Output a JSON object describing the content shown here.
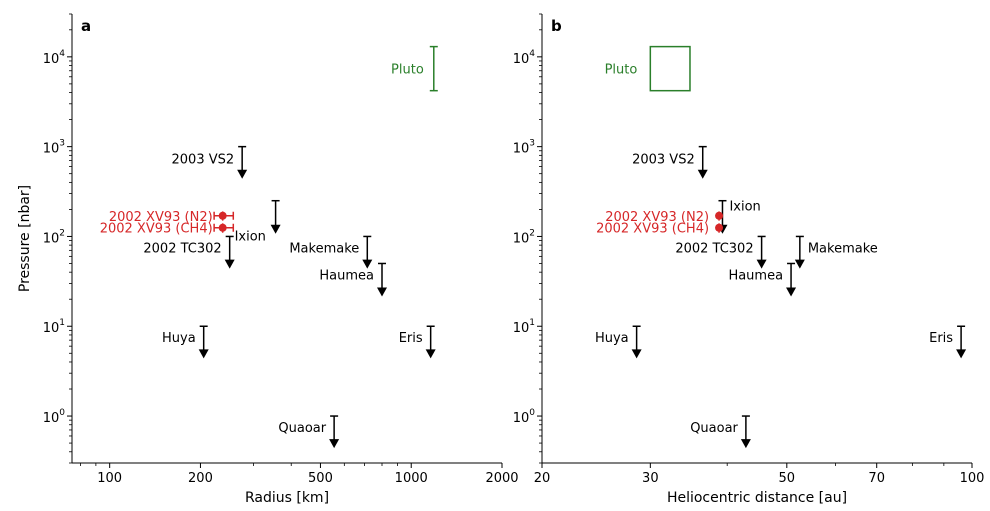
{
  "chart_data": [
    {
      "panel_label": "a",
      "type": "scatter",
      "xlabel": "Radius [km]",
      "ylabel": "Pressure [nbar]",
      "x_scale": "log",
      "y_scale": "log",
      "xlim": [
        75,
        2000
      ],
      "ylim": [
        0.3,
        30000
      ],
      "x_ticks": [
        {
          "v": 100,
          "label": "100"
        },
        {
          "v": 200,
          "label": "200"
        },
        {
          "v": 500,
          "label": "500"
        },
        {
          "v": 1000,
          "label": "1000"
        },
        {
          "v": 2000,
          "label": "2000"
        }
      ],
      "y_ticks": [
        {
          "v": 1,
          "base": "10",
          "exp": "0"
        },
        {
          "v": 10,
          "base": "10",
          "exp": "1"
        },
        {
          "v": 100,
          "base": "10",
          "exp": "2"
        },
        {
          "v": 1000,
          "base": "10",
          "exp": "3"
        },
        {
          "v": 10000,
          "base": "10",
          "exp": "4"
        }
      ],
      "upper_limits": [
        {
          "name": "2003 VS2",
          "x": 275,
          "top": 1000,
          "bottom": 450
        },
        {
          "name": "Ixion",
          "x": 355,
          "top": 250,
          "bottom": 110
        },
        {
          "name": "2002 TC302",
          "x": 250,
          "top": 100,
          "bottom": 45
        },
        {
          "name": "Makemake",
          "x": 715,
          "top": 100,
          "bottom": 45
        },
        {
          "name": "Haumea",
          "x": 800,
          "top": 50,
          "bottom": 22
        },
        {
          "name": "Huya",
          "x": 205,
          "top": 10,
          "bottom": 4.5
        },
        {
          "name": "Eris",
          "x": 1160,
          "top": 10,
          "bottom": 4.5
        },
        {
          "name": "Quaoar",
          "x": 555,
          "top": 1.0,
          "bottom": 0.45
        }
      ],
      "detections": [
        {
          "name": "2002 XV93 (N2)",
          "x": 237,
          "x_err": [
            222,
            257
          ],
          "y": 170,
          "y_err": [
            150,
            190
          ]
        },
        {
          "name": "2002 XV93 (CH4)",
          "x": 237,
          "x_err": [
            222,
            257
          ],
          "y": 125,
          "y_err": [
            110,
            140
          ]
        }
      ],
      "reference": {
        "name": "Pluto",
        "x": 1188,
        "y_range": [
          4200,
          13000
        ]
      }
    },
    {
      "panel_label": "b",
      "type": "scatter",
      "xlabel": "Heliocentric distance [au]",
      "ylabel": "",
      "x_scale": "log",
      "y_scale": "log",
      "xlim": [
        20,
        100
      ],
      "ylim": [
        0.3,
        30000
      ],
      "x_ticks": [
        {
          "v": 20,
          "label": "20"
        },
        {
          "v": 30,
          "label": "30"
        },
        {
          "v": 50,
          "label": "50"
        },
        {
          "v": 70,
          "label": "70"
        },
        {
          "v": 100,
          "label": "100"
        }
      ],
      "y_ticks": [
        {
          "v": 1,
          "base": "10",
          "exp": "0"
        },
        {
          "v": 10,
          "base": "10",
          "exp": "1"
        },
        {
          "v": 100,
          "base": "10",
          "exp": "2"
        },
        {
          "v": 1000,
          "base": "10",
          "exp": "3"
        },
        {
          "v": 10000,
          "base": "10",
          "exp": "4"
        }
      ],
      "upper_limits": [
        {
          "name": "2003 VS2",
          "x": 36.5,
          "top": 1000,
          "bottom": 450
        },
        {
          "name": "Ixion",
          "x": 39.3,
          "top": 250,
          "bottom": 110
        },
        {
          "name": "2002 TC302",
          "x": 45.5,
          "top": 100,
          "bottom": 45
        },
        {
          "name": "Makemake",
          "x": 52.5,
          "top": 100,
          "bottom": 45
        },
        {
          "name": "Haumea",
          "x": 50.8,
          "top": 50,
          "bottom": 22
        },
        {
          "name": "Huya",
          "x": 28.5,
          "top": 10,
          "bottom": 4.5
        },
        {
          "name": "Eris",
          "x": 96.0,
          "top": 10,
          "bottom": 4.5
        },
        {
          "name": "Quaoar",
          "x": 42.9,
          "top": 1.0,
          "bottom": 0.45
        }
      ],
      "detections": [
        {
          "name": "2002 XV93 (N2)",
          "x": 38.8,
          "y": 170,
          "y_err": [
            150,
            190
          ]
        },
        {
          "name": "2002 XV93 (CH4)",
          "x": 38.8,
          "y": 125,
          "y_err": [
            110,
            140
          ]
        }
      ],
      "reference": {
        "name": "Pluto",
        "x_range": [
          30.0,
          34.8
        ],
        "y_range": [
          4200,
          13000
        ]
      }
    }
  ],
  "colors": {
    "axis": "#000000",
    "detection": "#d62728",
    "pluto": "#2a7f2a"
  }
}
